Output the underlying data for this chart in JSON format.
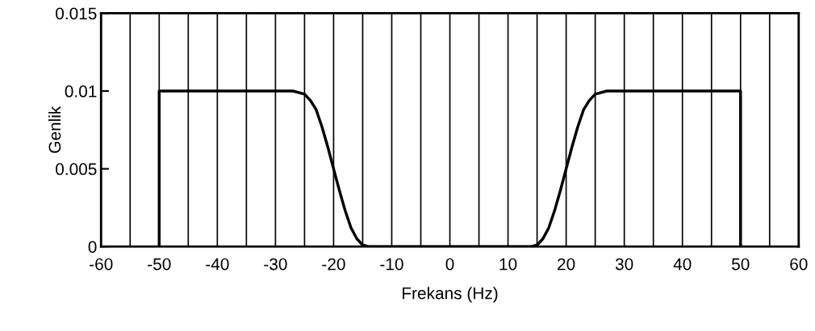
{
  "chart_data": {
    "type": "line",
    "xlabel": "Frekans (Hz)",
    "ylabel": "Genlik",
    "series": [
      {
        "color": "#000000",
        "x": [
          -50,
          -50,
          -40,
          -30,
          -27,
          -25,
          -24,
          -23,
          -22,
          -21,
          -20,
          -19,
          -18,
          -17,
          -16,
          -15,
          -14,
          -10,
          0,
          10,
          14,
          15,
          16,
          17,
          18,
          19,
          20,
          21,
          22,
          23,
          24,
          25,
          27,
          30,
          40,
          50,
          50
        ],
        "values": [
          0,
          0.01,
          0.01,
          0.01,
          0.01,
          0.0098,
          0.0094,
          0.0088,
          0.0077,
          0.0064,
          0.005,
          0.0036,
          0.0023,
          0.0012,
          0.0005,
          0.0001,
          0,
          0,
          0,
          0,
          0,
          0.0001,
          0.0005,
          0.0012,
          0.0023,
          0.0036,
          0.005,
          0.0064,
          0.0077,
          0.0088,
          0.0094,
          0.0098,
          0.01,
          0.01,
          0.01,
          0.01,
          0
        ]
      }
    ],
    "xlim": [
      -60,
      60
    ],
    "xticks": [
      -60,
      {
        "value": -55,
        "label": null
      },
      -50,
      {
        "value": -45,
        "label": null
      },
      -40,
      {
        "value": -35,
        "label": null
      },
      -30,
      {
        "value": -25,
        "label": null
      },
      -20,
      {
        "value": -15,
        "label": null
      },
      -10,
      {
        "value": -5,
        "label": null
      },
      0,
      {
        "value": 5,
        "label": null
      },
      10,
      {
        "value": 15,
        "label": null
      },
      20,
      {
        "value": 25,
        "label": null
      },
      30,
      {
        "value": 35,
        "label": null
      },
      40,
      {
        "value": 45,
        "label": null
      },
      50,
      {
        "value": 55,
        "label": null
      },
      60
    ],
    "ylim": [
      0,
      0.015
    ],
    "yticks": [
      0,
      0.005,
      0.01,
      0.015
    ],
    "grid": "x",
    "line_style": "solid",
    "marker": "none"
  }
}
